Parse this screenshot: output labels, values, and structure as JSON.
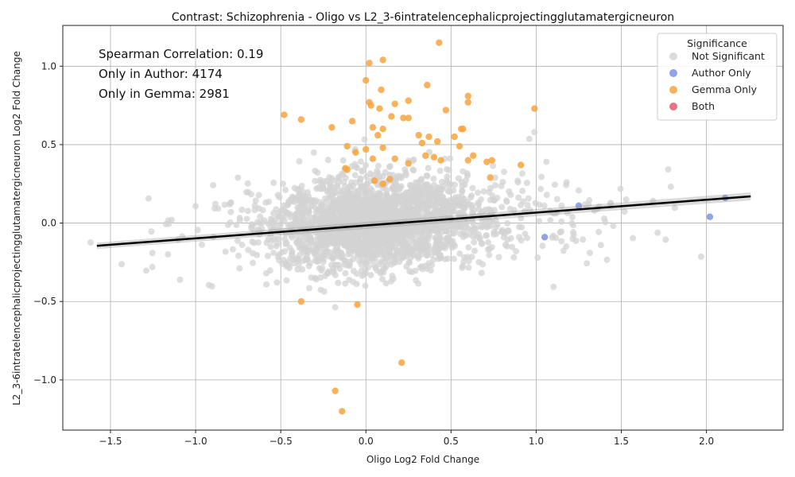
{
  "chart_data": {
    "type": "scatter",
    "title": "Contrast: Schizophrenia - Oligo vs L2_3-6intratelencephalicprojectingglutamatergicneuron",
    "xlabel": "Oligo Log2 Fold Change",
    "ylabel": "L2_3-6intratelencephalicprojectingglutamatergicneuron Log2 Fold Change",
    "xlim": [
      -1.78,
      2.45
    ],
    "ylim": [
      -1.32,
      1.26
    ],
    "x_ticks": [
      -1.5,
      -1.0,
      -0.5,
      0.0,
      0.5,
      1.0,
      1.5,
      2.0
    ],
    "x_tick_labels": [
      "−1.5",
      "−1.0",
      "−0.5",
      "0.0",
      "0.5",
      "1.0",
      "1.5",
      "2.0"
    ],
    "y_ticks": [
      -1.0,
      -0.5,
      0.0,
      0.5,
      1.0
    ],
    "y_tick_labels": [
      "−1.0",
      "−0.5",
      "0.0",
      "0.5",
      "1.0"
    ],
    "grid": true,
    "annotations": [
      "Spearman Correlation: 0.19",
      "Only in Author: 4174",
      "Only in Gemma: 2981"
    ],
    "legend": {
      "title": "Significance",
      "placement": "top-right",
      "entries": [
        {
          "label": "Not Significant",
          "color": "#d3d3d3"
        },
        {
          "label": "Author Only",
          "color": "#7b93e0"
        },
        {
          "label": "Gemma Only",
          "color": "#f8a440"
        },
        {
          "label": "Both",
          "color": "#e05a6e"
        }
      ]
    },
    "regression_line": {
      "x": [
        -1.58,
        2.26
      ],
      "y": [
        -0.145,
        0.17
      ],
      "color": "#000000"
    },
    "series": [
      {
        "name": "Gemma Only",
        "color": "#f8a440",
        "points": [
          [
            0.43,
            1.15
          ],
          [
            0.02,
            1.02
          ],
          [
            0.1,
            1.04
          ],
          [
            0.0,
            0.91
          ],
          [
            0.36,
            0.88
          ],
          [
            0.09,
            0.85
          ],
          [
            0.6,
            0.81
          ],
          [
            0.25,
            0.78
          ],
          [
            0.6,
            0.77
          ],
          [
            0.02,
            0.77
          ],
          [
            0.17,
            0.76
          ],
          [
            0.03,
            0.75
          ],
          [
            0.08,
            0.73
          ],
          [
            0.47,
            0.72
          ],
          [
            0.99,
            0.73
          ],
          [
            -0.48,
            0.69
          ],
          [
            -0.38,
            0.66
          ],
          [
            0.15,
            0.68
          ],
          [
            0.22,
            0.67
          ],
          [
            0.25,
            0.67
          ],
          [
            -0.08,
            0.65
          ],
          [
            -0.2,
            0.61
          ],
          [
            0.04,
            0.61
          ],
          [
            0.1,
            0.6
          ],
          [
            0.56,
            0.6
          ],
          [
            0.57,
            0.6
          ],
          [
            0.07,
            0.56
          ],
          [
            0.31,
            0.56
          ],
          [
            0.37,
            0.55
          ],
          [
            0.52,
            0.55
          ],
          [
            0.42,
            0.52
          ],
          [
            0.33,
            0.51
          ],
          [
            -0.11,
            0.49
          ],
          [
            0.55,
            0.49
          ],
          [
            0.1,
            0.48
          ],
          [
            0.0,
            0.47
          ],
          [
            -0.06,
            0.45
          ],
          [
            0.63,
            0.43
          ],
          [
            0.35,
            0.43
          ],
          [
            0.4,
            0.42
          ],
          [
            0.04,
            0.41
          ],
          [
            0.17,
            0.41
          ],
          [
            0.44,
            0.4
          ],
          [
            0.6,
            0.4
          ],
          [
            0.74,
            0.4
          ],
          [
            0.71,
            0.39
          ],
          [
            0.91,
            0.37
          ],
          [
            0.25,
            0.38
          ],
          [
            -0.12,
            0.35
          ],
          [
            -0.11,
            0.34
          ],
          [
            0.73,
            0.29
          ],
          [
            0.14,
            0.28
          ],
          [
            0.05,
            0.27
          ],
          [
            0.1,
            0.25
          ],
          [
            -0.38,
            -0.5
          ],
          [
            -0.05,
            -0.52
          ],
          [
            0.21,
            -0.89
          ],
          [
            -0.18,
            -1.07
          ],
          [
            -0.14,
            -1.2
          ]
        ]
      },
      {
        "name": "Author Only",
        "color": "#7b93e0",
        "points": [
          [
            1.25,
            0.11
          ],
          [
            2.11,
            0.16
          ],
          [
            2.02,
            0.04
          ],
          [
            1.05,
            -0.09
          ]
        ]
      },
      {
        "name": "Both",
        "color": "#e05a6e",
        "points": []
      }
    ]
  }
}
